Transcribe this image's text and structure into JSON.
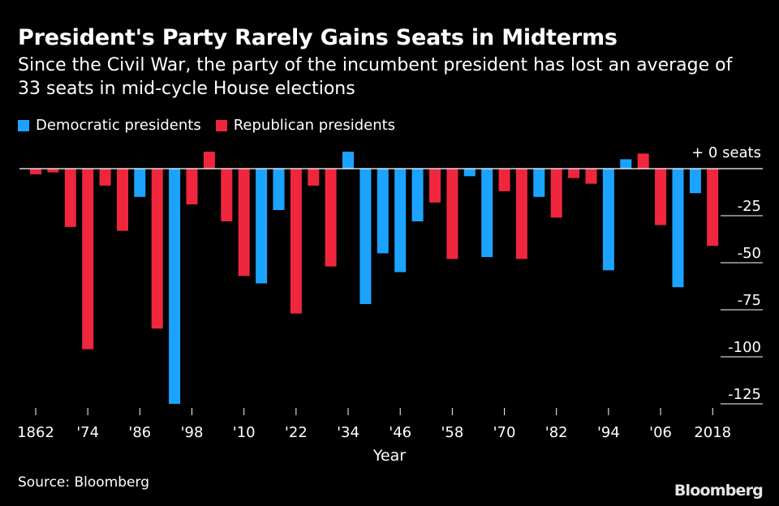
{
  "header": {
    "title": "President's Party Rarely Gains Seats in Midterms",
    "subtitle": "Since the Civil War, the party of the incumbent president has lost an average of 33 seats in mid-cycle House elections"
  },
  "legend": {
    "democratic_label": "Democratic presidents",
    "republican_label": "Republican presidents"
  },
  "colors": {
    "democratic": "#1ca3ff",
    "republican": "#f0263f"
  },
  "footer": {
    "source": "Source: Bloomberg",
    "logo": "Bloomberg"
  },
  "chart_data": {
    "type": "bar",
    "xlabel": "Year",
    "zero_label": "+ 0 seats",
    "ylim": [
      -128,
      10
    ],
    "y_ticks": [
      0,
      -25,
      -50,
      -75,
      -100,
      -125
    ],
    "y_tick_labels": [
      "-25",
      "-50",
      "-75",
      "-100",
      "-125"
    ],
    "x_tick_labels": [
      {
        "label": "1862",
        "year": 1862
      },
      {
        "label": "'74",
        "year": 1874
      },
      {
        "label": "'86",
        "year": 1886
      },
      {
        "label": "'98",
        "year": 1898
      },
      {
        "label": "'10",
        "year": 1910
      },
      {
        "label": "'22",
        "year": 1922
      },
      {
        "label": "'34",
        "year": 1934
      },
      {
        "label": "'46",
        "year": 1946
      },
      {
        "label": "'58",
        "year": 1958
      },
      {
        "label": "'70",
        "year": 1970
      },
      {
        "label": "'82",
        "year": 1982
      },
      {
        "label": "'94",
        "year": 1994
      },
      {
        "label": "'06",
        "year": 2006
      },
      {
        "label": "2018",
        "year": 2018
      }
    ],
    "series": [
      {
        "name": "Democratic presidents",
        "points": [
          {
            "x": 1886,
            "y": -15
          },
          {
            "x": 1894,
            "y": -125
          },
          {
            "x": 1914,
            "y": -61
          },
          {
            "x": 1918,
            "y": -22
          },
          {
            "x": 1934,
            "y": 9
          },
          {
            "x": 1938,
            "y": -72
          },
          {
            "x": 1942,
            "y": -45
          },
          {
            "x": 1946,
            "y": -55
          },
          {
            "x": 1950,
            "y": -28
          },
          {
            "x": 1962,
            "y": -4
          },
          {
            "x": 1966,
            "y": -47
          },
          {
            "x": 1978,
            "y": -15
          },
          {
            "x": 1994,
            "y": -54
          },
          {
            "x": 1998,
            "y": 5
          },
          {
            "x": 2010,
            "y": -63
          },
          {
            "x": 2014,
            "y": -13
          }
        ]
      },
      {
        "name": "Republican presidents",
        "points": [
          {
            "x": 1862,
            "y": -3
          },
          {
            "x": 1866,
            "y": -2
          },
          {
            "x": 1870,
            "y": -31
          },
          {
            "x": 1874,
            "y": -96
          },
          {
            "x": 1878,
            "y": -9
          },
          {
            "x": 1882,
            "y": -33
          },
          {
            "x": 1890,
            "y": -85
          },
          {
            "x": 1898,
            "y": -19
          },
          {
            "x": 1902,
            "y": 9
          },
          {
            "x": 1906,
            "y": -28
          },
          {
            "x": 1910,
            "y": -57
          },
          {
            "x": 1922,
            "y": -77
          },
          {
            "x": 1926,
            "y": -9
          },
          {
            "x": 1930,
            "y": -52
          },
          {
            "x": 1954,
            "y": -18
          },
          {
            "x": 1958,
            "y": -48
          },
          {
            "x": 1970,
            "y": -12
          },
          {
            "x": 1974,
            "y": -48
          },
          {
            "x": 1982,
            "y": -26
          },
          {
            "x": 1986,
            "y": -5
          },
          {
            "x": 1990,
            "y": -8
          },
          {
            "x": 2002,
            "y": 8
          },
          {
            "x": 2006,
            "y": -30
          },
          {
            "x": 2018,
            "y": -41
          }
        ]
      }
    ]
  }
}
